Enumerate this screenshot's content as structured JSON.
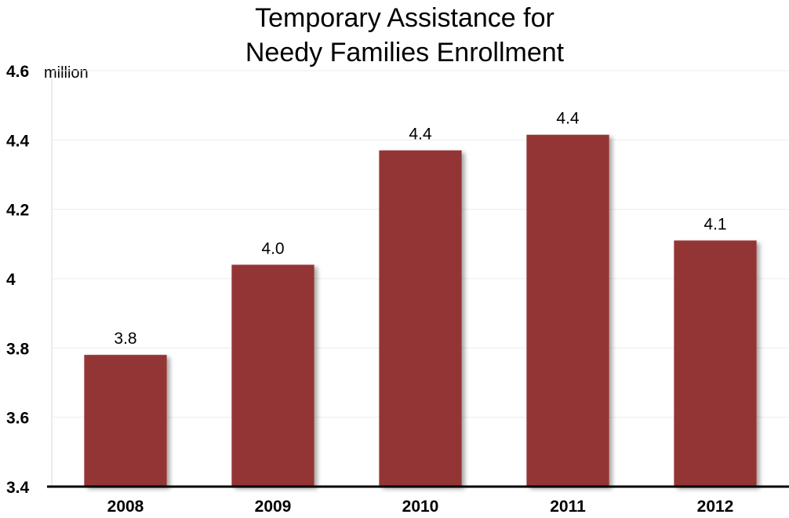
{
  "chart_data": {
    "type": "bar",
    "title": [
      "Temporary Assistance for",
      "Needy Families Enrollment"
    ],
    "ylabel_unit": "million",
    "categories": [
      "2008",
      "2009",
      "2010",
      "2011",
      "2012"
    ],
    "values": [
      3.78,
      4.04,
      4.37,
      4.415,
      4.11
    ],
    "data_labels": [
      "3.8",
      "4.0",
      "4.4",
      "4.4",
      "4.1"
    ],
    "ylim": [
      3.4,
      4.6
    ],
    "y_ticks": [
      {
        "value": 3.4,
        "label": "3.4"
      },
      {
        "value": 3.6,
        "label": "3.6"
      },
      {
        "value": 3.8,
        "label": "3.8"
      },
      {
        "value": 4.0,
        "label": "4"
      },
      {
        "value": 4.2,
        "label": "4.2"
      },
      {
        "value": 4.4,
        "label": "4.4"
      },
      {
        "value": 4.6,
        "label": "4.6"
      }
    ],
    "grid": true,
    "bar_color": "#943634"
  }
}
